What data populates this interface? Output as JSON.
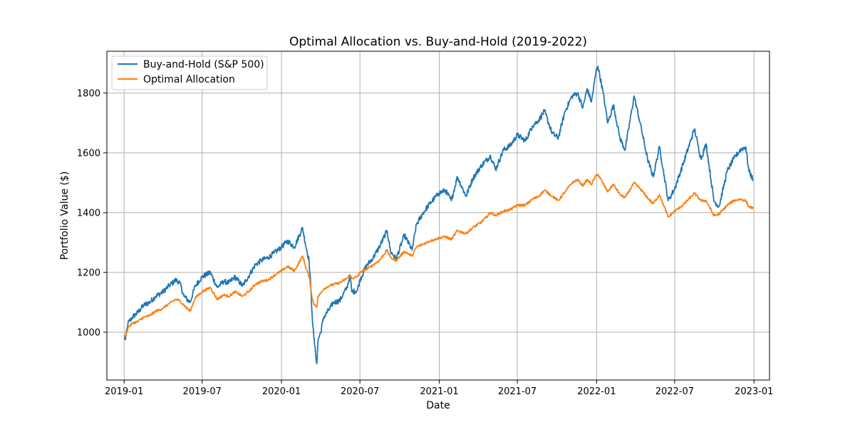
{
  "chart_data": {
    "type": "line",
    "title": "Optimal Allocation vs. Buy-and-Hold (2019-2022)",
    "xlabel": "Date",
    "ylabel": "Portfolio Value ($)",
    "xlim": [
      "2018-11-22",
      "2023-02-06"
    ],
    "ylim": [
      840,
      1940
    ],
    "grid": true,
    "legend_position": "top-left",
    "x_ticks": [
      "2019-01",
      "2019-07",
      "2020-01",
      "2020-07",
      "2021-01",
      "2021-07",
      "2022-01",
      "2022-07",
      "2023-01"
    ],
    "y_ticks": [
      1000,
      1200,
      1400,
      1600,
      1800
    ],
    "series": [
      {
        "name": "Buy-and-Hold (S&P 500)",
        "color": "#1f77b4",
        "points": [
          [
            "2019-01-01",
            990
          ],
          [
            "2019-01-04",
            975
          ],
          [
            "2019-01-10",
            1030
          ],
          [
            "2019-01-20",
            1050
          ],
          [
            "2019-02-01",
            1065
          ],
          [
            "2019-02-15",
            1090
          ],
          [
            "2019-03-01",
            1100
          ],
          [
            "2019-03-15",
            1120
          ],
          [
            "2019-04-01",
            1135
          ],
          [
            "2019-04-15",
            1155
          ],
          [
            "2019-05-01",
            1175
          ],
          [
            "2019-05-10",
            1165
          ],
          [
            "2019-05-20",
            1120
          ],
          [
            "2019-06-03",
            1100
          ],
          [
            "2019-06-15",
            1155
          ],
          [
            "2019-07-01",
            1185
          ],
          [
            "2019-07-20",
            1200
          ],
          [
            "2019-08-05",
            1150
          ],
          [
            "2019-08-20",
            1170
          ],
          [
            "2019-09-01",
            1165
          ],
          [
            "2019-09-15",
            1185
          ],
          [
            "2019-10-03",
            1155
          ],
          [
            "2019-10-20",
            1195
          ],
          [
            "2019-11-01",
            1225
          ],
          [
            "2019-11-15",
            1240
          ],
          [
            "2019-12-01",
            1250
          ],
          [
            "2019-12-15",
            1265
          ],
          [
            "2020-01-01",
            1285
          ],
          [
            "2020-01-15",
            1305
          ],
          [
            "2020-01-31",
            1285
          ],
          [
            "2020-02-19",
            1350
          ],
          [
            "2020-02-25",
            1300
          ],
          [
            "2020-03-05",
            1240
          ],
          [
            "2020-03-09",
            1150
          ],
          [
            "2020-03-12",
            1060
          ],
          [
            "2020-03-16",
            985
          ],
          [
            "2020-03-20",
            930
          ],
          [
            "2020-03-23",
            895
          ],
          [
            "2020-03-26",
            975
          ],
          [
            "2020-04-01",
            1000
          ],
          [
            "2020-04-08",
            1050
          ],
          [
            "2020-04-20",
            1075
          ],
          [
            "2020-05-01",
            1100
          ],
          [
            "2020-05-15",
            1105
          ],
          [
            "2020-06-01",
            1150
          ],
          [
            "2020-06-08",
            1190
          ],
          [
            "2020-06-12",
            1135
          ],
          [
            "2020-06-25",
            1140
          ],
          [
            "2020-07-01",
            1175
          ],
          [
            "2020-07-15",
            1220
          ],
          [
            "2020-08-01",
            1250
          ],
          [
            "2020-08-15",
            1285
          ],
          [
            "2020-09-02",
            1340
          ],
          [
            "2020-09-10",
            1270
          ],
          [
            "2020-09-23",
            1245
          ],
          [
            "2020-10-12",
            1325
          ],
          [
            "2020-10-30",
            1275
          ],
          [
            "2020-11-09",
            1360
          ],
          [
            "2020-11-25",
            1400
          ],
          [
            "2020-12-10",
            1430
          ],
          [
            "2020-12-31",
            1465
          ],
          [
            "2021-01-15",
            1475
          ],
          [
            "2021-01-29",
            1440
          ],
          [
            "2021-02-12",
            1520
          ],
          [
            "2021-03-04",
            1455
          ],
          [
            "2021-03-20",
            1515
          ],
          [
            "2021-04-10",
            1560
          ],
          [
            "2021-04-30",
            1590
          ],
          [
            "2021-05-12",
            1545
          ],
          [
            "2021-05-30",
            1610
          ],
          [
            "2021-06-15",
            1625
          ],
          [
            "2021-07-01",
            1660
          ],
          [
            "2021-07-20",
            1640
          ],
          [
            "2021-08-05",
            1690
          ],
          [
            "2021-08-20",
            1710
          ],
          [
            "2021-09-02",
            1740
          ],
          [
            "2021-09-20",
            1665
          ],
          [
            "2021-10-04",
            1650
          ],
          [
            "2021-10-20",
            1740
          ],
          [
            "2021-11-05",
            1790
          ],
          [
            "2021-11-18",
            1800
          ],
          [
            "2021-11-30",
            1750
          ],
          [
            "2021-12-10",
            1815
          ],
          [
            "2021-12-20",
            1770
          ],
          [
            "2021-12-31",
            1875
          ],
          [
            "2022-01-04",
            1890
          ],
          [
            "2022-01-15",
            1810
          ],
          [
            "2022-01-27",
            1700
          ],
          [
            "2022-02-09",
            1760
          ],
          [
            "2022-02-24",
            1650
          ],
          [
            "2022-03-08",
            1610
          ],
          [
            "2022-03-29",
            1790
          ],
          [
            "2022-04-12",
            1700
          ],
          [
            "2022-04-29",
            1580
          ],
          [
            "2022-05-12",
            1520
          ],
          [
            "2022-05-27",
            1620
          ],
          [
            "2022-06-16",
            1440
          ],
          [
            "2022-07-01",
            1480
          ],
          [
            "2022-07-20",
            1560
          ],
          [
            "2022-08-16",
            1680
          ],
          [
            "2022-08-31",
            1580
          ],
          [
            "2022-09-12",
            1630
          ],
          [
            "2022-09-30",
            1440
          ],
          [
            "2022-10-12",
            1420
          ],
          [
            "2022-10-31",
            1540
          ],
          [
            "2022-11-15",
            1580
          ],
          [
            "2022-11-30",
            1610
          ],
          [
            "2022-12-13",
            1620
          ],
          [
            "2022-12-20",
            1540
          ],
          [
            "2022-12-30",
            1510
          ]
        ]
      },
      {
        "name": "Optimal Allocation",
        "color": "#ff7f0e",
        "points": [
          [
            "2019-01-01",
            990
          ],
          [
            "2019-01-04",
            985
          ],
          [
            "2019-01-10",
            1015
          ],
          [
            "2019-01-20",
            1030
          ],
          [
            "2019-02-01",
            1035
          ],
          [
            "2019-02-15",
            1050
          ],
          [
            "2019-03-01",
            1055
          ],
          [
            "2019-03-15",
            1070
          ],
          [
            "2019-04-01",
            1080
          ],
          [
            "2019-04-15",
            1095
          ],
          [
            "2019-05-01",
            1110
          ],
          [
            "2019-05-10",
            1105
          ],
          [
            "2019-05-20",
            1090
          ],
          [
            "2019-06-03",
            1070
          ],
          [
            "2019-06-15",
            1115
          ],
          [
            "2019-07-01",
            1135
          ],
          [
            "2019-07-20",
            1150
          ],
          [
            "2019-08-05",
            1110
          ],
          [
            "2019-08-20",
            1125
          ],
          [
            "2019-09-01",
            1120
          ],
          [
            "2019-09-15",
            1135
          ],
          [
            "2019-10-03",
            1120
          ],
          [
            "2019-10-20",
            1140
          ],
          [
            "2019-11-01",
            1160
          ],
          [
            "2019-11-15",
            1170
          ],
          [
            "2019-12-01",
            1175
          ],
          [
            "2019-12-15",
            1190
          ],
          [
            "2020-01-01",
            1205
          ],
          [
            "2020-01-15",
            1220
          ],
          [
            "2020-01-31",
            1205
          ],
          [
            "2020-02-19",
            1255
          ],
          [
            "2020-02-25",
            1225
          ],
          [
            "2020-03-05",
            1185
          ],
          [
            "2020-03-09",
            1150
          ],
          [
            "2020-03-12",
            1115
          ],
          [
            "2020-03-16",
            1095
          ],
          [
            "2020-03-20",
            1090
          ],
          [
            "2020-03-23",
            1085
          ],
          [
            "2020-03-26",
            1120
          ],
          [
            "2020-04-01",
            1130
          ],
          [
            "2020-04-08",
            1145
          ],
          [
            "2020-04-20",
            1155
          ],
          [
            "2020-05-01",
            1160
          ],
          [
            "2020-05-15",
            1165
          ],
          [
            "2020-06-01",
            1180
          ],
          [
            "2020-06-08",
            1190
          ],
          [
            "2020-06-12",
            1180
          ],
          [
            "2020-06-25",
            1185
          ],
          [
            "2020-07-01",
            1200
          ],
          [
            "2020-07-15",
            1210
          ],
          [
            "2020-08-01",
            1225
          ],
          [
            "2020-08-15",
            1240
          ],
          [
            "2020-09-02",
            1275
          ],
          [
            "2020-09-10",
            1250
          ],
          [
            "2020-09-23",
            1240
          ],
          [
            "2020-10-12",
            1270
          ],
          [
            "2020-10-30",
            1255
          ],
          [
            "2020-11-09",
            1285
          ],
          [
            "2020-11-25",
            1295
          ],
          [
            "2020-12-10",
            1305
          ],
          [
            "2020-12-31",
            1315
          ],
          [
            "2021-01-15",
            1320
          ],
          [
            "2021-01-29",
            1310
          ],
          [
            "2021-02-12",
            1340
          ],
          [
            "2021-03-04",
            1330
          ],
          [
            "2021-03-20",
            1350
          ],
          [
            "2021-04-10",
            1370
          ],
          [
            "2021-04-30",
            1400
          ],
          [
            "2021-05-12",
            1390
          ],
          [
            "2021-05-30",
            1405
          ],
          [
            "2021-06-15",
            1410
          ],
          [
            "2021-07-01",
            1425
          ],
          [
            "2021-07-20",
            1425
          ],
          [
            "2021-08-05",
            1445
          ],
          [
            "2021-08-20",
            1455
          ],
          [
            "2021-09-02",
            1475
          ],
          [
            "2021-09-20",
            1455
          ],
          [
            "2021-10-04",
            1440
          ],
          [
            "2021-10-20",
            1470
          ],
          [
            "2021-11-05",
            1500
          ],
          [
            "2021-11-18",
            1510
          ],
          [
            "2021-11-30",
            1490
          ],
          [
            "2021-12-10",
            1510
          ],
          [
            "2021-12-20",
            1495
          ],
          [
            "2021-12-31",
            1525
          ],
          [
            "2022-01-04",
            1528
          ],
          [
            "2022-01-15",
            1500
          ],
          [
            "2022-01-27",
            1470
          ],
          [
            "2022-02-09",
            1495
          ],
          [
            "2022-02-24",
            1460
          ],
          [
            "2022-03-08",
            1450
          ],
          [
            "2022-03-29",
            1500
          ],
          [
            "2022-04-12",
            1480
          ],
          [
            "2022-04-29",
            1450
          ],
          [
            "2022-05-12",
            1430
          ],
          [
            "2022-05-27",
            1460
          ],
          [
            "2022-06-16",
            1385
          ],
          [
            "2022-07-01",
            1405
          ],
          [
            "2022-07-20",
            1425
          ],
          [
            "2022-08-16",
            1465
          ],
          [
            "2022-08-31",
            1440
          ],
          [
            "2022-09-12",
            1440
          ],
          [
            "2022-09-30",
            1390
          ],
          [
            "2022-10-12",
            1395
          ],
          [
            "2022-10-31",
            1425
          ],
          [
            "2022-11-15",
            1440
          ],
          [
            "2022-11-30",
            1445
          ],
          [
            "2022-12-13",
            1440
          ],
          [
            "2022-12-20",
            1420
          ],
          [
            "2022-12-30",
            1415
          ]
        ]
      }
    ]
  }
}
